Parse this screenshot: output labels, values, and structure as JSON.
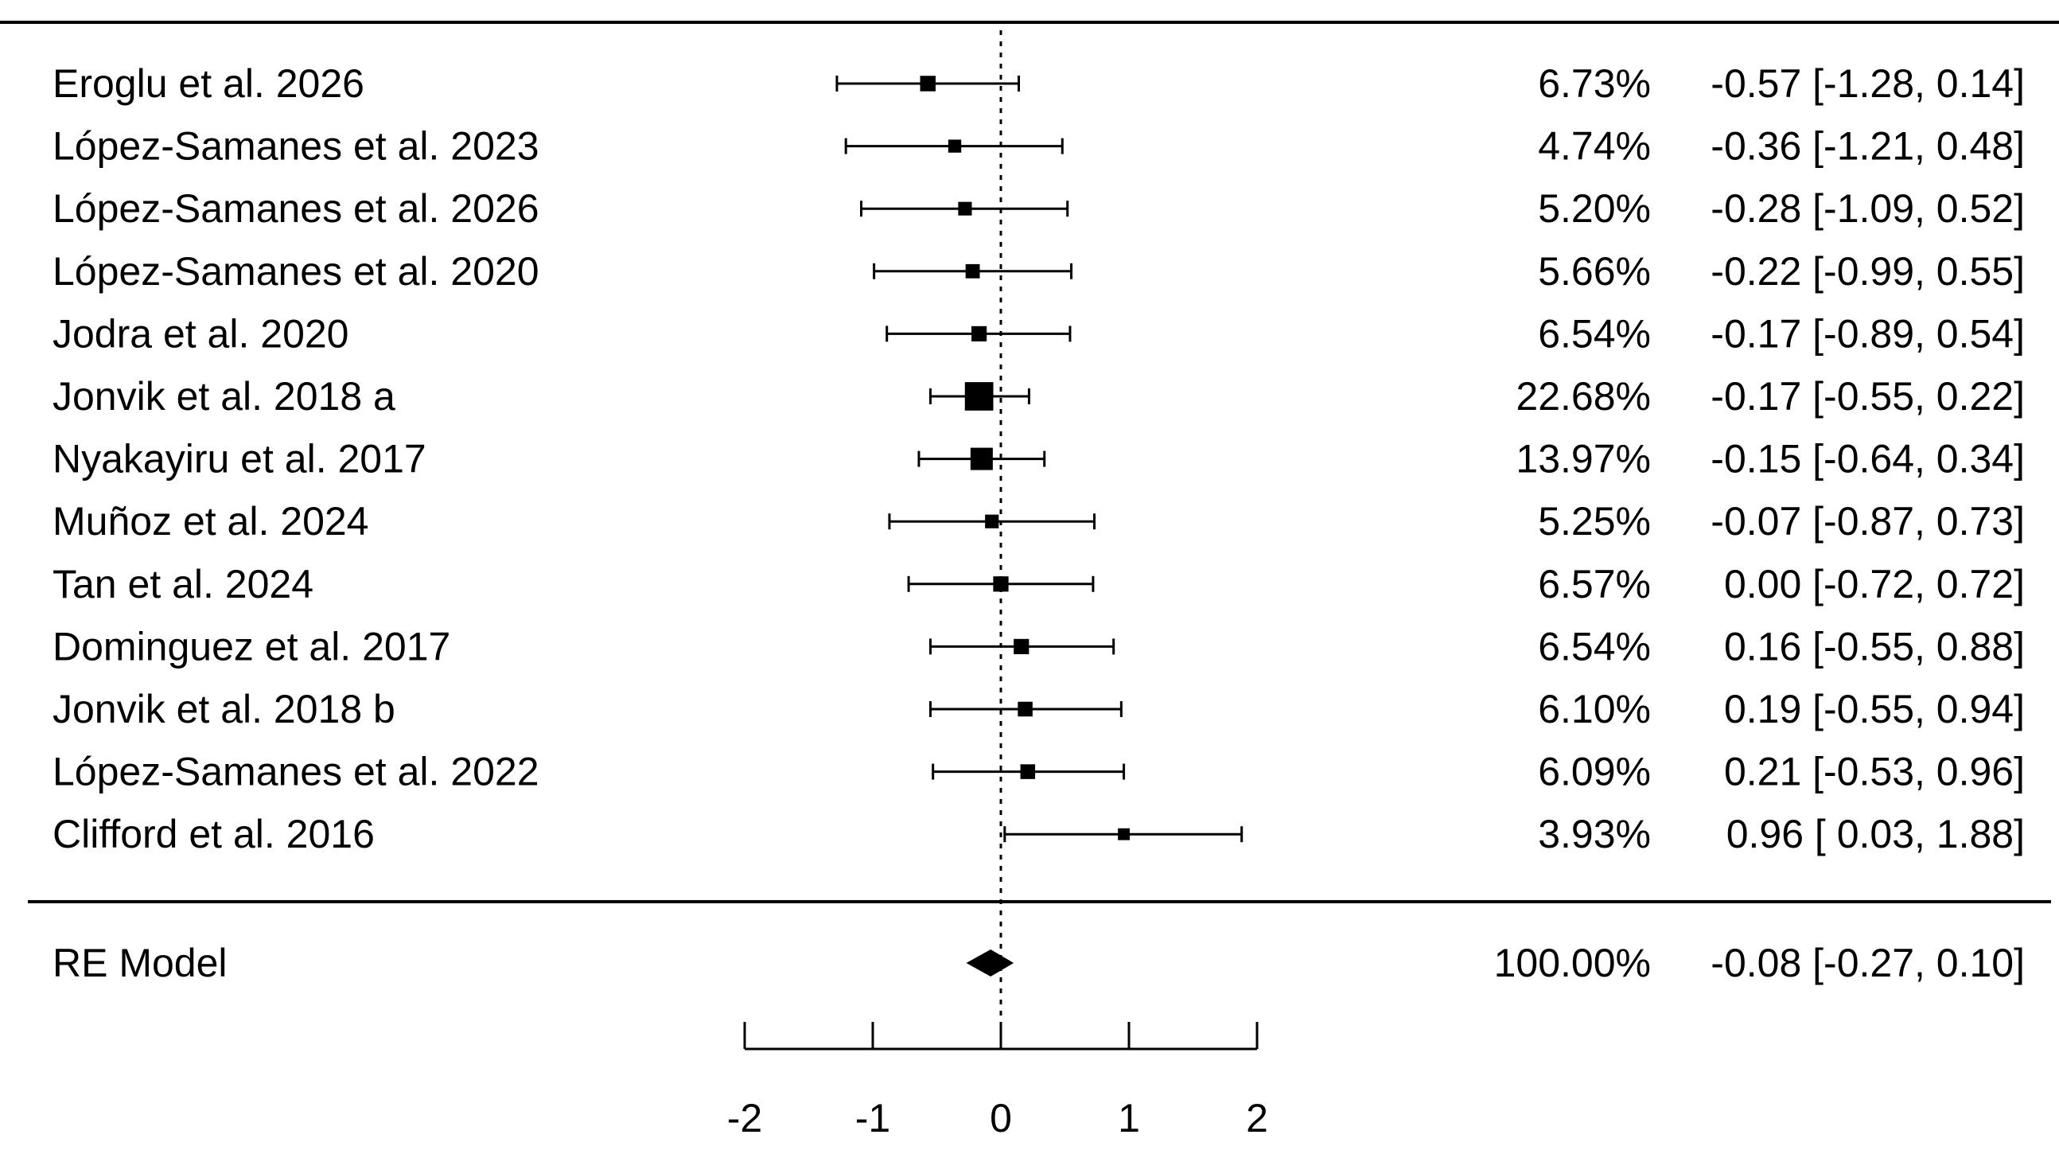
{
  "chart_data": {
    "type": "forest",
    "xlim": [
      -2,
      2
    ],
    "x_ticks": [
      "-2",
      "-1",
      "0",
      "1",
      "2"
    ],
    "reference_line": 0,
    "studies": [
      {
        "label": "Eroglu et al. 2026",
        "weight": "6.73%",
        "ci": "-0.57 [-1.28, 0.14]",
        "est": -0.57,
        "lo": -1.28,
        "hi": 0.14,
        "w": 6.73
      },
      {
        "label": "López-Samanes et al. 2023",
        "weight": "4.74%",
        "ci": "-0.36 [-1.21, 0.48]",
        "est": -0.36,
        "lo": -1.21,
        "hi": 0.48,
        "w": 4.74
      },
      {
        "label": "López-Samanes et al. 2026",
        "weight": "5.20%",
        "ci": "-0.28 [-1.09, 0.52]",
        "est": -0.28,
        "lo": -1.09,
        "hi": 0.52,
        "w": 5.2
      },
      {
        "label": "López-Samanes et al. 2020",
        "weight": "5.66%",
        "ci": "-0.22 [-0.99, 0.55]",
        "est": -0.22,
        "lo": -0.99,
        "hi": 0.55,
        "w": 5.66
      },
      {
        "label": "Jodra et al. 2020",
        "weight": "6.54%",
        "ci": "-0.17 [-0.89, 0.54]",
        "est": -0.17,
        "lo": -0.89,
        "hi": 0.54,
        "w": 6.54
      },
      {
        "label": "Jonvik et al. 2018 a",
        "weight": "22.68%",
        "ci": "-0.17 [-0.55, 0.22]",
        "est": -0.17,
        "lo": -0.55,
        "hi": 0.22,
        "w": 22.68
      },
      {
        "label": "Nyakayiru et al. 2017",
        "weight": "13.97%",
        "ci": "-0.15 [-0.64, 0.34]",
        "est": -0.15,
        "lo": -0.64,
        "hi": 0.34,
        "w": 13.97
      },
      {
        "label": "Muñoz et al. 2024",
        "weight": "5.25%",
        "ci": "-0.07 [-0.87, 0.73]",
        "est": -0.07,
        "lo": -0.87,
        "hi": 0.73,
        "w": 5.25
      },
      {
        "label": "Tan et al. 2024",
        "weight": "6.57%",
        "ci": "0.00 [-0.72, 0.72]",
        "est": 0.0,
        "lo": -0.72,
        "hi": 0.72,
        "w": 6.57
      },
      {
        "label": "Dominguez et al. 2017",
        "weight": "6.54%",
        "ci": "0.16 [-0.55, 0.88]",
        "est": 0.16,
        "lo": -0.55,
        "hi": 0.88,
        "w": 6.54
      },
      {
        "label": "Jonvik et al. 2018 b",
        "weight": "6.10%",
        "ci": "0.19 [-0.55, 0.94]",
        "est": 0.19,
        "lo": -0.55,
        "hi": 0.94,
        "w": 6.1
      },
      {
        "label": "López-Samanes et al. 2022",
        "weight": "6.09%",
        "ci": "0.21 [-0.53, 0.96]",
        "est": 0.21,
        "lo": -0.53,
        "hi": 0.96,
        "w": 6.09
      },
      {
        "label": "Clifford et al. 2016",
        "weight": "3.93%",
        "ci": "0.96 [ 0.03, 1.88]",
        "est": 0.96,
        "lo": 0.03,
        "hi": 1.88,
        "w": 3.93
      }
    ],
    "summary": {
      "label": "RE Model",
      "weight": "100.00%",
      "ci": "-0.08 [-0.27, 0.10]",
      "est": -0.08,
      "lo": -0.27,
      "hi": 0.1
    }
  }
}
